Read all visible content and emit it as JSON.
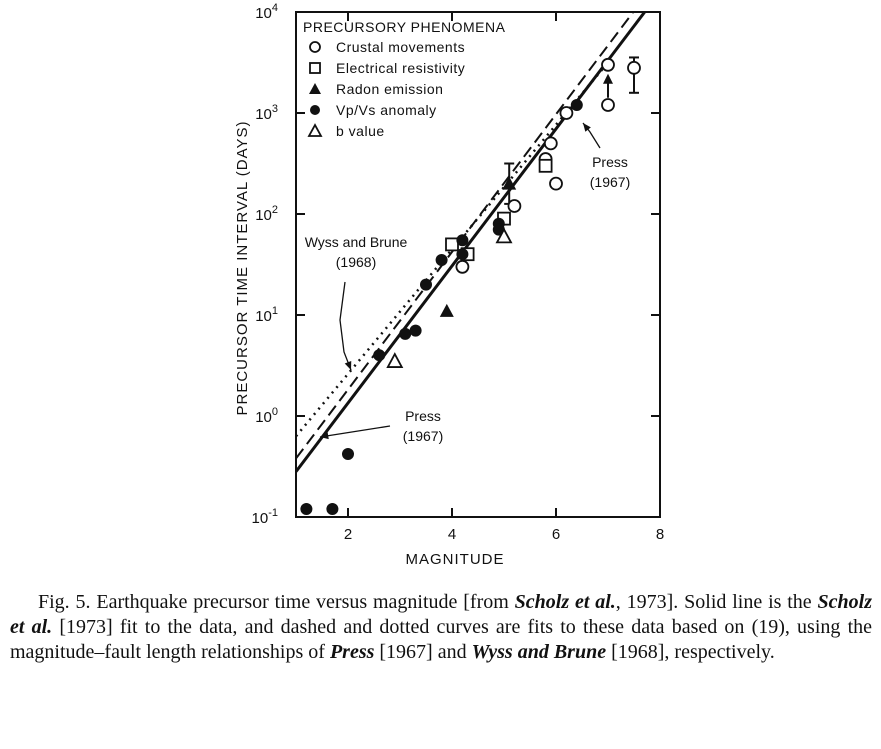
{
  "chart_data": {
    "type": "scatter",
    "xlabel": "MAGNITUDE",
    "ylabel": "PRECURSOR TIME INTERVAL (DAYS)",
    "xlim": [
      1,
      8
    ],
    "ylim_log10": [
      -1,
      4
    ],
    "y_scale": "log",
    "x_ticks": [
      "2",
      "4",
      "6",
      "8"
    ],
    "y_ticks": [
      {
        "base": "10",
        "exp": "-1"
      },
      {
        "base": "10",
        "exp": "0"
      },
      {
        "base": "10",
        "exp": "1"
      },
      {
        "base": "10",
        "exp": "2"
      },
      {
        "base": "10",
        "exp": "3"
      },
      {
        "base": "10",
        "exp": "4"
      }
    ],
    "grid": false,
    "legend_position": "top-left",
    "legend_title": "PRECURSORY PHENOMENA",
    "series": [
      {
        "name": "Crustal movements",
        "marker": "open-circle",
        "points": [
          [
            4.2,
            30
          ],
          [
            5.2,
            120
          ],
          [
            5.8,
            350
          ],
          [
            5.9,
            500
          ],
          [
            6.0,
            200
          ],
          [
            6.2,
            1000
          ],
          [
            7.0,
            3000
          ],
          [
            7.0,
            1200
          ],
          [
            7.5,
            2800
          ]
        ]
      },
      {
        "name": "Electrical resistivity",
        "marker": "open-square",
        "points": [
          [
            4.0,
            50
          ],
          [
            4.3,
            40
          ],
          [
            5.0,
            90
          ],
          [
            5.8,
            300
          ]
        ]
      },
      {
        "name": "Radon emission",
        "marker": "filled-triangle",
        "points": [
          [
            3.9,
            11
          ],
          [
            5.1,
            200
          ]
        ]
      },
      {
        "name": "Vp/Vs anomaly",
        "marker": "filled-circle",
        "points": [
          [
            1.2,
            0.12
          ],
          [
            1.7,
            0.12
          ],
          [
            2.0,
            0.42
          ],
          [
            2.6,
            4
          ],
          [
            3.1,
            6.5
          ],
          [
            3.3,
            7
          ],
          [
            3.5,
            20
          ],
          [
            3.8,
            35
          ],
          [
            4.2,
            55
          ],
          [
            4.2,
            40
          ],
          [
            4.9,
            80
          ],
          [
            4.9,
            70
          ],
          [
            6.4,
            1200
          ]
        ]
      },
      {
        "name": "b value",
        "marker": "open-triangle",
        "points": [
          [
            2.9,
            3.5
          ],
          [
            5.0,
            60
          ]
        ]
      }
    ],
    "fit_lines": [
      {
        "style": "solid",
        "x": [
          1.0,
          8.0
        ],
        "log10_y": [
          -0.55,
          4.2
        ]
      },
      {
        "style": "dashed",
        "x": [
          1.0,
          8.0
        ],
        "log10_y": [
          -0.42,
          4.35
        ]
      },
      {
        "style": "dotted",
        "x": [
          1.0,
          7.0
        ],
        "log10_y": [
          -0.2,
          3.5
        ]
      }
    ],
    "error_bars": [
      {
        "x": 7.5,
        "log10_low": 3.2,
        "log10_high": 3.55
      },
      {
        "x": 5.1,
        "log10_low": 2.1,
        "log10_high": 2.5
      }
    ],
    "arrows": [
      {
        "x": 7.0,
        "log10_y": 3.25,
        "direction": "up"
      }
    ],
    "annotations": [
      {
        "lines": [
          "Wyss and Brune",
          "(1968)"
        ]
      },
      {
        "lines": [
          "Press",
          "(1967)"
        ]
      },
      {
        "lines": [
          "Press",
          "(1967)"
        ]
      }
    ]
  },
  "caption": {
    "parts": [
      {
        "t": "Fig. 5.   Earthquake precursor time versus magnitude [from ",
        "i": false
      },
      {
        "t": "Scholz et al.",
        "i": true
      },
      {
        "t": ", 1973]. Solid line is the ",
        "i": false
      },
      {
        "t": "Scholz et al.",
        "i": true
      },
      {
        "t": " [1973] fit to the data, and dashed and dotted curves are fits to these data based on (19), using the magnitude–fault length relationships of ",
        "i": false
      },
      {
        "t": "Press",
        "i": true
      },
      {
        "t": " [1967] and ",
        "i": false
      },
      {
        "t": "Wyss and Brune",
        "i": true
      },
      {
        "t": " [1968], respectively.",
        "i": false
      }
    ]
  }
}
